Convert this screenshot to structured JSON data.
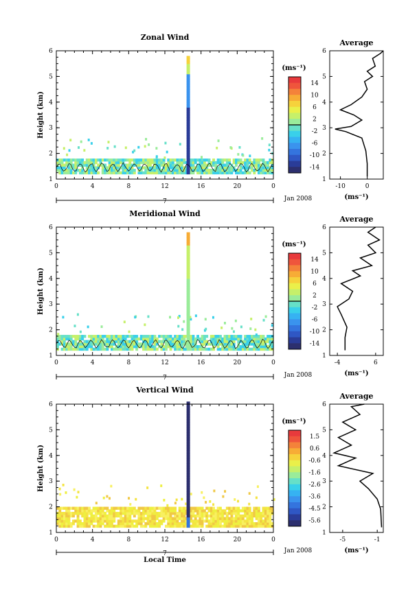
{
  "chart_data": [
    {
      "type": "heatmap",
      "title": "Zonal Wind",
      "ylabel": "Height (km)",
      "xlim": [
        0,
        24
      ],
      "ylim": [
        1,
        6
      ],
      "x_ticks": [
        "0",
        "4",
        "8",
        "12",
        "16",
        "20",
        "0"
      ],
      "y_ticks": [
        "1",
        "2",
        "3",
        "4",
        "5",
        "6"
      ],
      "date_bar_label": "7",
      "date_label": "Jan 2008",
      "colorbar": {
        "unit": "(ms⁻¹)",
        "ticks": [
          "14",
          "10",
          "6",
          "2",
          "-2",
          "-6",
          "-10",
          "-14"
        ],
        "min": -16,
        "max": 16
      },
      "data_notes": "Low-level layer 1.2–1.8 km over full day (light green/cyan); narrow tall column near 14.5 h to ~5.7 km, dark blue below ~4 km, yellow at top.",
      "average": {
        "title": "Average",
        "xlabel": "(ms⁻¹)",
        "x_ticks": [
          "-10",
          "0"
        ],
        "xlim": [
          -14,
          6
        ],
        "ylim": [
          1,
          6
        ],
        "y_ticks": [
          "1",
          "2",
          "3",
          "4",
          "5",
          "6"
        ],
        "profile": [
          [
            0.0,
            1.1
          ],
          [
            0.0,
            1.6
          ],
          [
            -0.5,
            2.1
          ],
          [
            -2,
            2.6
          ],
          [
            -8,
            2.85
          ],
          [
            -12,
            2.95
          ],
          [
            -6,
            3.05
          ],
          [
            -2,
            3.3
          ],
          [
            -5,
            3.5
          ],
          [
            -10,
            3.7
          ],
          [
            -6,
            3.9
          ],
          [
            -2,
            4.2
          ],
          [
            0,
            4.5
          ],
          [
            -1,
            4.8
          ],
          [
            2,
            5.0
          ],
          [
            0,
            5.2
          ],
          [
            3,
            5.4
          ],
          [
            2,
            5.7
          ],
          [
            5,
            5.9
          ],
          [
            6,
            6.0
          ]
        ]
      }
    },
    {
      "type": "heatmap",
      "title": "Meridional Wind",
      "ylabel": "Height (km)",
      "xlim": [
        0,
        24
      ],
      "ylim": [
        1,
        6
      ],
      "x_ticks": [
        "0",
        "4",
        "8",
        "12",
        "16",
        "20",
        "0"
      ],
      "y_ticks": [
        "1",
        "2",
        "3",
        "4",
        "5",
        "6"
      ],
      "date_bar_label": "7",
      "date_label": "Jan 2008",
      "colorbar": {
        "unit": "(ms⁻¹)",
        "ticks": [
          "14",
          "10",
          "6",
          "2",
          "-2",
          "-6",
          "-10",
          "-14"
        ],
        "min": -16,
        "max": 16
      },
      "data_notes": "Low-level layer 1.2–1.8 km (cyan/light green); narrow column near 14.5 h to ~5.7 km, yellow/green.",
      "average": {
        "title": "Average",
        "xlabel": "(ms⁻¹)",
        "x_ticks": [
          "-4",
          "6"
        ],
        "xlim": [
          -6,
          8
        ],
        "ylim": [
          1,
          6
        ],
        "y_ticks": [
          "1",
          "2",
          "3",
          "4",
          "5",
          "6"
        ],
        "profile": [
          [
            -2,
            1.2
          ],
          [
            -2,
            1.7
          ],
          [
            -1.5,
            2.1
          ],
          [
            -3,
            2.6
          ],
          [
            -4,
            2.9
          ],
          [
            -1,
            3.2
          ],
          [
            0,
            3.5
          ],
          [
            -3,
            3.8
          ],
          [
            2,
            4.1
          ],
          [
            0,
            4.3
          ],
          [
            5,
            4.5
          ],
          [
            2,
            4.8
          ],
          [
            6,
            5.0
          ],
          [
            4,
            5.3
          ],
          [
            7,
            5.5
          ],
          [
            4,
            5.8
          ],
          [
            6,
            6.0
          ]
        ]
      }
    },
    {
      "type": "heatmap",
      "title": "Vertical Wind",
      "ylabel": "Height (km)",
      "xlabel": "Local Time",
      "xlim": [
        0,
        24
      ],
      "ylim": [
        1,
        6
      ],
      "x_ticks": [
        "0",
        "4",
        "8",
        "12",
        "16",
        "20",
        "0"
      ],
      "y_ticks": [
        "1",
        "2",
        "3",
        "4",
        "5",
        "6"
      ],
      "date_bar_label": "7",
      "date_label": "Jan 2008",
      "colorbar": {
        "unit": "(ms⁻¹)",
        "ticks": [
          "1.5",
          "0.6",
          "-0.6",
          "-1.6",
          "-2.6",
          "-3.6",
          "-4.5",
          "-5.6"
        ],
        "min": -6,
        "max": 2
      },
      "data_notes": "Low-level layer 1.2–2.0 km mostly yellow; strong downdraft column (dark blue) near 14.5 h to ~6 km.",
      "average": {
        "title": "Average",
        "xlabel": "(ms⁻¹)",
        "x_ticks": [
          "-5",
          "-1"
        ],
        "xlim": [
          -6.5,
          -0.3
        ],
        "ylim": [
          1,
          6
        ],
        "y_ticks": [
          "1",
          "2",
          "3",
          "4",
          "5",
          "6"
        ],
        "profile": [
          [
            -0.5,
            1.2
          ],
          [
            -0.6,
            1.9
          ],
          [
            -1.0,
            2.3
          ],
          [
            -2.0,
            2.7
          ],
          [
            -3.0,
            3.0
          ],
          [
            -1.5,
            3.3
          ],
          [
            -5.5,
            3.6
          ],
          [
            -3.5,
            3.9
          ],
          [
            -6.0,
            4.1
          ],
          [
            -4.0,
            4.4
          ],
          [
            -5.5,
            4.7
          ],
          [
            -3.5,
            5.0
          ],
          [
            -5.0,
            5.3
          ],
          [
            -3.0,
            5.6
          ],
          [
            -4.0,
            5.9
          ],
          [
            -2.5,
            6.0
          ]
        ]
      }
    }
  ]
}
